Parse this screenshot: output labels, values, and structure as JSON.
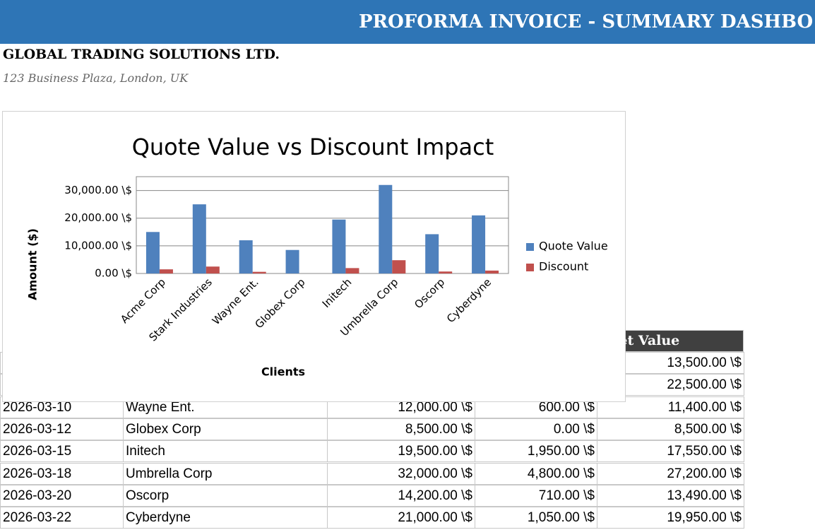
{
  "header": {
    "title": "PROFORMA INVOICE - SUMMARY DASHBO"
  },
  "company": {
    "name": "GLOBAL TRADING SOLUTIONS LTD.",
    "address": "123 Business Plaza, London, UK"
  },
  "table": {
    "header": "Net Value",
    "rows": [
      [
        "13,500.00 \\$"
      ],
      [
        "22,500.00 \\$"
      ],
      [
        "2026-03-10",
        "Wayne Ent.",
        "12,000.00 \\$",
        "600.00 \\$",
        "11,400.00 \\$"
      ],
      [
        "2026-03-12",
        "Globex Corp",
        "8,500.00 \\$",
        "0.00 \\$",
        "8,500.00 \\$"
      ],
      [
        "2026-03-15",
        "Initech",
        "19,500.00 \\$",
        "1,950.00 \\$",
        "17,550.00 \\$"
      ],
      [
        "2026-03-18",
        "Umbrella Corp",
        "32,000.00 \\$",
        "4,800.00 \\$",
        "27,200.00 \\$"
      ],
      [
        "2026-03-20",
        "Oscorp",
        "14,200.00 \\$",
        "710.00 \\$",
        "13,490.00 \\$"
      ],
      [
        "2026-03-22",
        "Cyberdyne",
        "21,000.00 \\$",
        "1,050.00 \\$",
        "19,950.00 \\$"
      ]
    ]
  },
  "chart_data": {
    "type": "bar",
    "title": "Quote Value vs Discount Impact",
    "x_label": "Clients",
    "y_label": "Amount ($)",
    "categories": [
      "Acme Corp",
      "Stark Industries",
      "Wayne Ent.",
      "Globex Corp",
      "Initech",
      "Umbrella Corp",
      "Oscorp",
      "Cyberdyne"
    ],
    "series": [
      {
        "name": "Quote Value",
        "color": "#4f81bd",
        "values": [
          15000,
          25000,
          12000,
          8500,
          19500,
          32000,
          14200,
          21000
        ]
      },
      {
        "name": "Discount",
        "color": "#c0504d",
        "values": [
          1500,
          2500,
          600,
          0,
          1950,
          4800,
          710,
          1050
        ]
      }
    ],
    "ylim": [
      0,
      35000
    ],
    "yticks": [
      {
        "value": 0,
        "label": "0.00 \\$"
      },
      {
        "value": 10000,
        "label": "10,000.00 \\$"
      },
      {
        "value": 20000,
        "label": "20,000.00 \\$"
      },
      {
        "value": 30000,
        "label": "30,000.00 \\$"
      }
    ],
    "grid": true,
    "legend": "right"
  }
}
